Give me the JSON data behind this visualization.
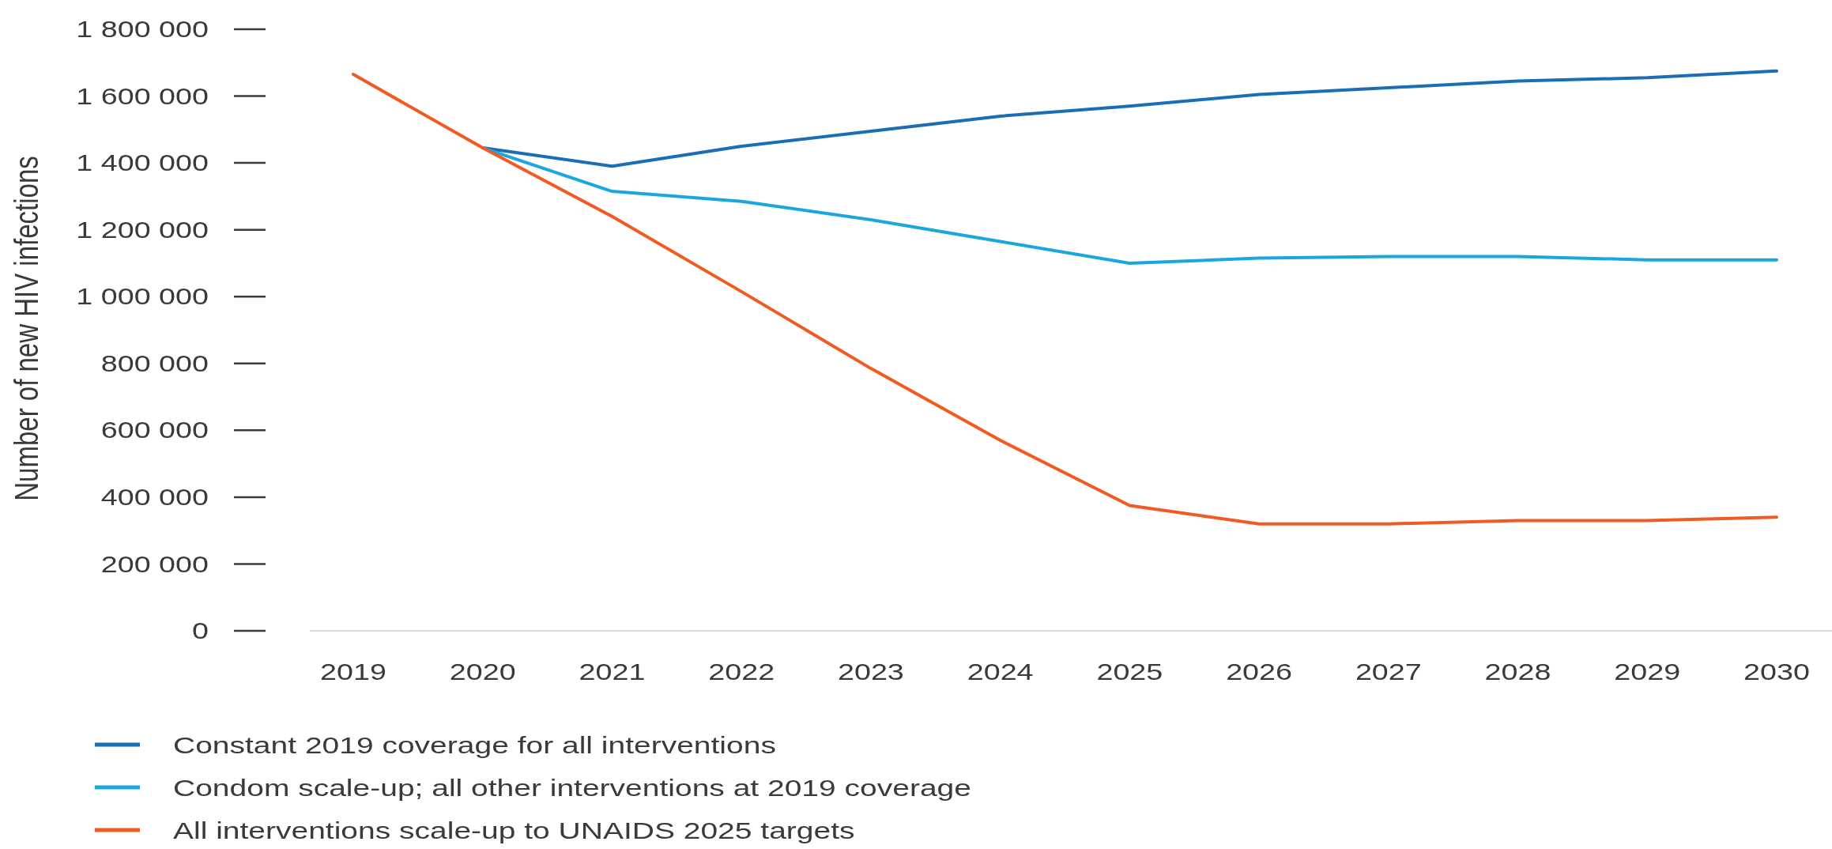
{
  "chart_data": {
    "type": "line",
    "ylabel": "Number of new HIV infections",
    "categories": [
      "2019",
      "2020",
      "2021",
      "2022",
      "2023",
      "2024",
      "2025",
      "2026",
      "2027",
      "2028",
      "2029",
      "2030"
    ],
    "series": [
      {
        "name": "Constant 2019 coverage for all interventions",
        "color": "#1b6db4",
        "values": [
          null,
          1445000,
          1390000,
          1450000,
          1495000,
          1540000,
          1570000,
          1605000,
          1625000,
          1645000,
          1655000,
          1675000
        ]
      },
      {
        "name": "Condom scale-up; all other interventions at 2019 coverage",
        "color": "#1aa7df",
        "values": [
          null,
          1445000,
          1315000,
          1285000,
          1230000,
          1165000,
          1100000,
          1115000,
          1120000,
          1120000,
          1110000,
          1110000
        ]
      },
      {
        "name": "All interventions scale-up to UNAIDS 2025 targets",
        "color": "#f15a22",
        "values": [
          1665000,
          1445000,
          1240000,
          1015000,
          785000,
          570000,
          375000,
          320000,
          320000,
          330000,
          330000,
          340000
        ]
      }
    ],
    "ylim": [
      0,
      1800000
    ],
    "yticks": [
      0,
      {
        "value": 200000,
        "label": "200 000"
      },
      {
        "value": 400000,
        "label": "400 000"
      },
      {
        "value": 600000,
        "label": "600 000"
      },
      {
        "value": 800000,
        "label": "800 000"
      },
      {
        "value": 1000000,
        "label": "1 000 000"
      },
      {
        "value": 1200000,
        "label": "1 200 000"
      },
      {
        "value": 1400000,
        "label": "1 400 000"
      },
      {
        "value": 1600000,
        "label": "1 600 000"
      },
      {
        "value": 1800000,
        "label": "1 800 000"
      }
    ],
    "legend": "bottom"
  }
}
